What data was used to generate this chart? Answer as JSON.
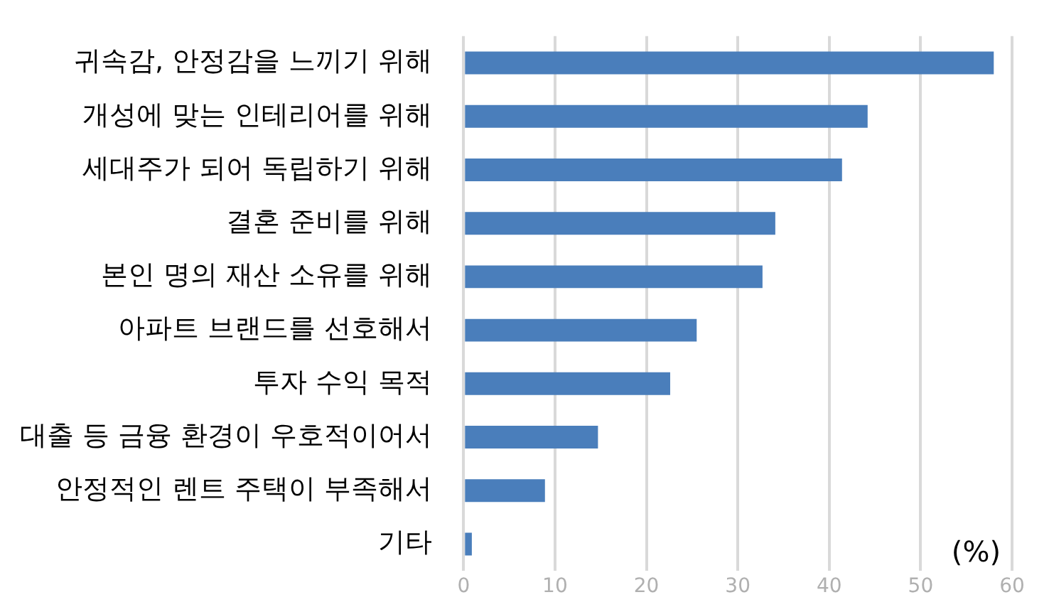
{
  "chart_data": {
    "type": "bar",
    "orientation": "horizontal",
    "categories": [
      "귀속감, 안정감을 느끼기 위해",
      "개성에 맞는 인테리어를 위해",
      "세대주가 되어 독립하기 위해",
      "결혼 준비를 위해",
      "본인 명의 재산 소유를 위해",
      "아파트 브랜드를 선호해서",
      "투자 수익 목적",
      "대출 등 금융 환경이 우호적이어서",
      "안정적인 렌트 주택이 부족해서",
      "기타"
    ],
    "values": [
      58.0,
      44.2,
      41.4,
      34.1,
      32.7,
      25.5,
      22.6,
      14.7,
      8.9,
      0.9
    ],
    "color": "#4a7ebb",
    "xlabel": "(%)",
    "xlim": [
      0,
      60
    ],
    "xticks": [
      0,
      10,
      20,
      30,
      40,
      50,
      60
    ],
    "grid": "x"
  }
}
